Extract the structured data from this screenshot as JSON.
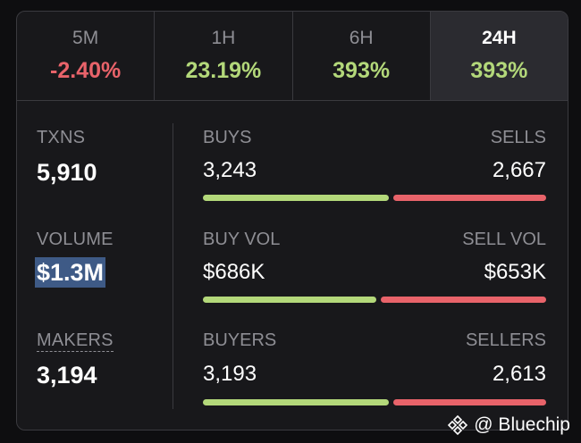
{
  "tabs": [
    {
      "label": "5M",
      "value": "-2.40%",
      "trend": "neg"
    },
    {
      "label": "1H",
      "value": "23.19%",
      "trend": "pos"
    },
    {
      "label": "6H",
      "value": "393%",
      "trend": "pos"
    },
    {
      "label": "24H",
      "value": "393%",
      "trend": "pos",
      "active": true
    }
  ],
  "stats": {
    "txns": {
      "label": "TXNS",
      "value": "5,910"
    },
    "volume": {
      "label": "VOLUME",
      "value": "$1.3M"
    },
    "makers": {
      "label": "MAKERS",
      "value": "3,194"
    }
  },
  "rows": {
    "buys": {
      "left_label": "BUYS",
      "left_value": "3,243",
      "right_label": "SELLS",
      "right_value": "2,667",
      "buy_fraction": 0.5487
    },
    "vol": {
      "left_label": "BUY VOL",
      "left_value": "$686K",
      "right_label": "SELL VOL",
      "right_value": "$653K",
      "buy_fraction": 0.5123
    },
    "buyers": {
      "left_label": "BUYERS",
      "left_value": "3,193",
      "right_label": "SELLERS",
      "right_value": "2,613",
      "buy_fraction": 0.55
    }
  },
  "watermark": {
    "text": "@ Bluechip",
    "icon": "binance-diamond-icon"
  },
  "colors": {
    "positive": "#b3d87a",
    "negative": "#e8636a",
    "selection": "#3e5a86"
  }
}
